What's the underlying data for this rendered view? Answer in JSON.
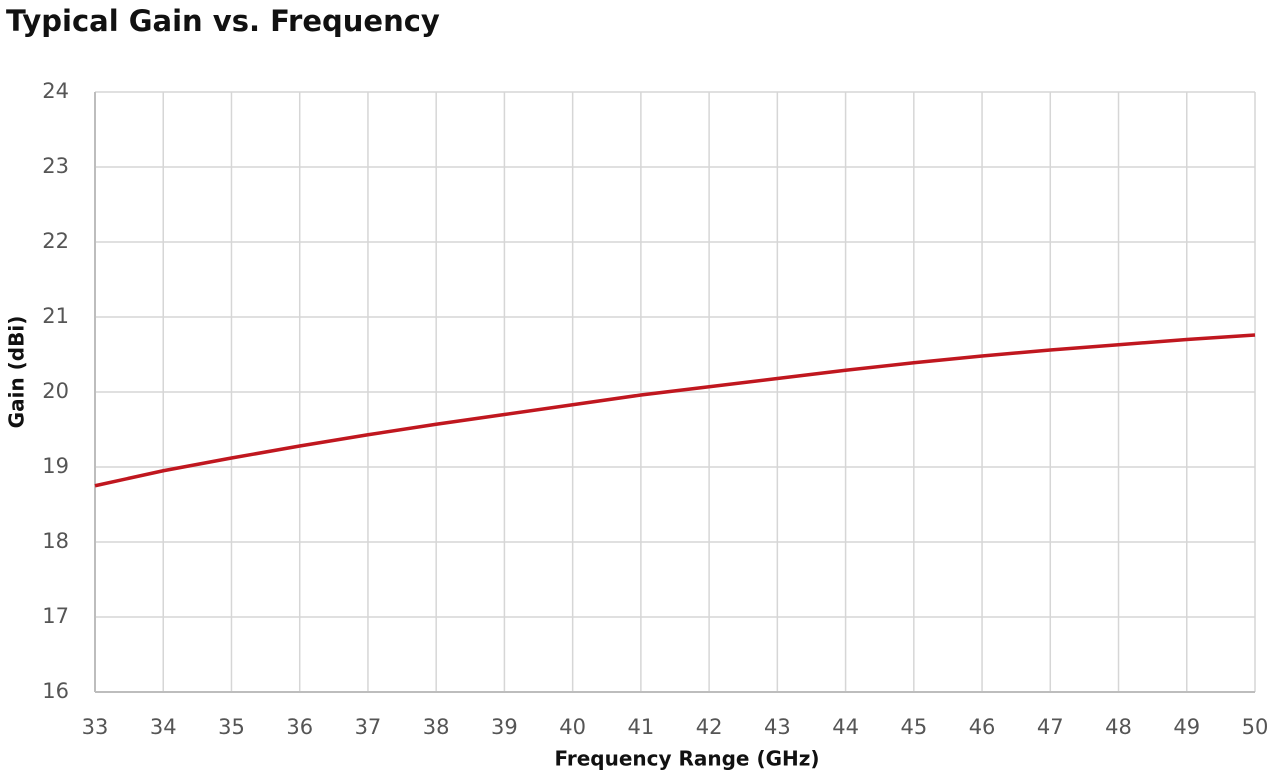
{
  "chart_data": {
    "type": "line",
    "title": "Typical Gain vs. Frequency",
    "x_label": "Frequency Range (GHz)",
    "y_label": "Gain (dBi)",
    "x": [
      33,
      34,
      35,
      36,
      37,
      38,
      39,
      40,
      41,
      42,
      43,
      44,
      45,
      46,
      47,
      48,
      49,
      50
    ],
    "series": [
      {
        "name": "Gain",
        "color": "#c0171f",
        "values": [
          18.75,
          18.95,
          19.12,
          19.28,
          19.43,
          19.57,
          19.7,
          19.83,
          19.96,
          20.07,
          20.18,
          20.29,
          20.39,
          20.48,
          20.56,
          20.63,
          20.7,
          20.76
        ]
      }
    ],
    "xlim": [
      33,
      50
    ],
    "xticks": [
      33,
      34,
      35,
      36,
      37,
      38,
      39,
      40,
      41,
      42,
      43,
      44,
      45,
      46,
      47,
      48,
      49,
      50
    ],
    "ylim": [
      16,
      24
    ],
    "yticks": [
      16,
      17,
      18,
      19,
      20,
      21,
      22,
      23,
      24
    ],
    "grid": true
  }
}
